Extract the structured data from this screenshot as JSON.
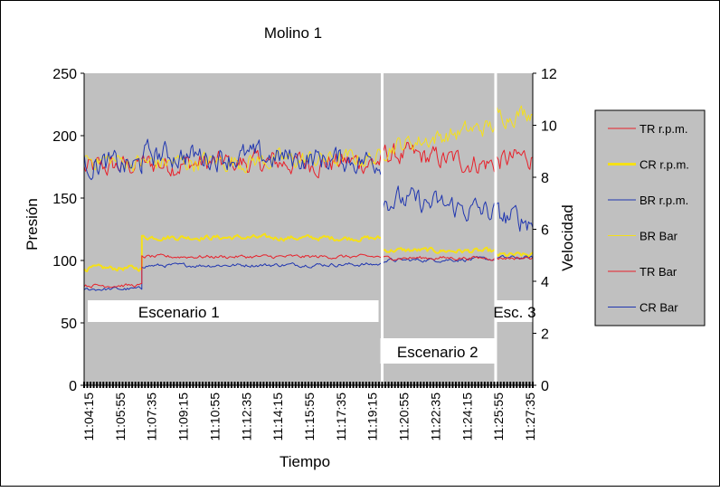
{
  "chart_data": {
    "type": "line",
    "title": "Molino 1",
    "xlabel": "Tiempo",
    "ylabel_left": "Presión",
    "ylabel_right": "Velocidad",
    "ylim_left": [
      0,
      250
    ],
    "ylim_right": [
      0,
      12
    ],
    "yticks_left": [
      0,
      50,
      100,
      150,
      200,
      250
    ],
    "yticks_right": [
      0,
      2,
      4,
      6,
      8,
      10,
      12
    ],
    "x_tick_labels": [
      "11:04:15",
      "11:05:55",
      "11:07:35",
      "11:09:15",
      "11:10:55",
      "11:12:35",
      "11:14:15",
      "11:15:55",
      "11:17:35",
      "11:19:15",
      "11:20:55",
      "11:22:35",
      "11:24:15",
      "11:25:55",
      "11:27:35"
    ],
    "x_range_minutes": [
      0,
      23.33
    ],
    "scenarios": [
      {
        "label": "Escenario 1",
        "start_min": 3.0,
        "end_min": 15.5
      },
      {
        "label": "Escenario 2",
        "start_min": 15.5,
        "end_min": 21.4
      },
      {
        "label": "Esc. 3",
        "start_min": 21.4,
        "end_min": 23.33
      }
    ],
    "legend_position": "right",
    "series": [
      {
        "name": "TR r.p.m.",
        "axis": "right",
        "color": "#e8202a",
        "width": 1,
        "segments": [
          [
            0,
            8.3,
            3.0,
            8.5
          ],
          [
            3.0,
            8.5,
            15.5,
            8.6
          ],
          [
            15.5,
            8.9,
            21.4,
            8.5
          ],
          [
            21.4,
            8.6,
            23.33,
            8.8
          ]
        ],
        "noise": 0.35
      },
      {
        "name": "CR r.p.m.",
        "axis": "right",
        "color": "#f5e018",
        "width": 2,
        "segments": [
          [
            0,
            4.5,
            3.0,
            4.5
          ],
          [
            3.0,
            5.7,
            15.5,
            5.65
          ],
          [
            15.5,
            5.2,
            21.4,
            5.15
          ],
          [
            21.4,
            5.0,
            23.33,
            5.0
          ]
        ],
        "noise": 0.08
      },
      {
        "name": "BR r.p.m.",
        "axis": "right",
        "color": "#2036b0",
        "width": 1,
        "segments": [
          [
            0,
            3.7,
            3.0,
            3.7
          ],
          [
            3.0,
            4.6,
            15.5,
            4.65
          ],
          [
            15.5,
            4.8,
            21.4,
            4.85
          ],
          [
            21.4,
            4.9,
            23.33,
            4.9
          ]
        ],
        "noise": 0.06
      },
      {
        "name": "BR Bar",
        "axis": "left",
        "color": "#f5e018",
        "width": 1,
        "segments": [
          [
            0,
            182,
            3.0,
            178
          ],
          [
            3.0,
            178,
            15.5,
            182
          ],
          [
            15.5,
            190,
            21.4,
            208
          ],
          [
            21.4,
            215,
            23.33,
            220
          ]
        ],
        "noise": 6
      },
      {
        "name": "TR Bar",
        "axis": "left",
        "color": "#e8202a",
        "width": 1,
        "segments": [
          [
            0,
            80,
            3.0,
            80
          ],
          [
            3.0,
            103,
            15.5,
            103
          ],
          [
            15.5,
            102,
            21.4,
            102
          ],
          [
            21.4,
            102,
            23.33,
            102
          ]
        ],
        "noise": 1.2
      },
      {
        "name": "CR Bar",
        "axis": "left",
        "color": "#2036b0",
        "width": 1,
        "segments": [
          [
            0,
            178,
            3.0,
            175
          ],
          [
            3.0,
            185,
            15.5,
            180
          ],
          [
            15.5,
            150,
            21.4,
            138
          ],
          [
            21.4,
            135,
            23.33,
            132
          ]
        ],
        "noise": 8
      }
    ],
    "legend": [
      "TR r.p.m.",
      "CR r.p.m.",
      "BR r.p.m.",
      "BR Bar",
      "TR Bar",
      "CR Bar"
    ]
  }
}
